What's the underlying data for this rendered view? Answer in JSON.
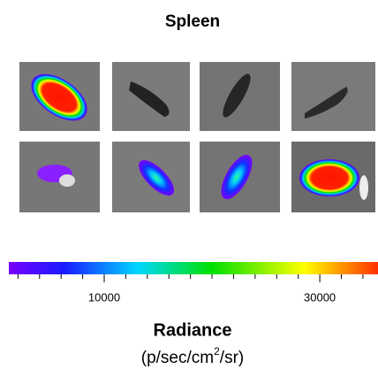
{
  "title": "Spleen",
  "colorbar": {
    "lim": [
      1150,
      35400
    ],
    "ticks": [
      {
        "value": 10000,
        "label": "10000"
      },
      {
        "value": 30000,
        "label": "30000"
      }
    ],
    "minor_ticks": [
      2000,
      4000,
      6000,
      8000,
      12000,
      14000,
      16000,
      18000,
      20000,
      22000,
      24000,
      26000,
      28000,
      32000,
      34000
    ],
    "label": "Radiance",
    "unit": [
      "(p/sec/cm",
      "2",
      "/sr)"
    ]
  }
}
